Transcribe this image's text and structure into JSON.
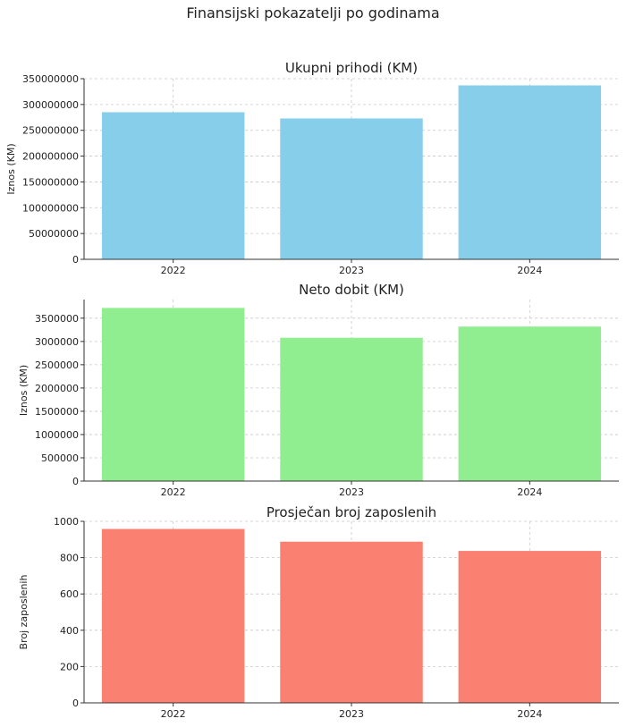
{
  "figure": {
    "suptitle": "Finansijski pokazatelji po godinama"
  },
  "chart_data": [
    {
      "type": "bar",
      "title": "Ukupni prihodi (KM)",
      "xlabel": "",
      "ylabel": "Iznos (KM)",
      "categories": [
        "2022",
        "2023",
        "2024"
      ],
      "values": [
        285000000,
        273000000,
        337000000
      ],
      "ylim": [
        0,
        350000000
      ],
      "yticks": [
        0,
        50000000,
        100000000,
        150000000,
        200000000,
        250000000,
        300000000,
        350000000
      ],
      "ytick_labels": [
        "0",
        "50000000",
        "100000000",
        "150000000",
        "200000000",
        "250000000",
        "300000000",
        "350000000"
      ],
      "color": "#87ceeb",
      "grid": true
    },
    {
      "type": "bar",
      "title": "Neto dobit (KM)",
      "xlabel": "",
      "ylabel": "Iznos (KM)",
      "categories": [
        "2022",
        "2023",
        "2024"
      ],
      "values": [
        3720000,
        3080000,
        3320000
      ],
      "ylim": [
        0,
        3900000
      ],
      "yticks": [
        0,
        500000,
        1000000,
        1500000,
        2000000,
        2500000,
        3000000,
        3500000
      ],
      "ytick_labels": [
        "0",
        "500000",
        "1000000",
        "1500000",
        "2000000",
        "2500000",
        "3000000",
        "3500000"
      ],
      "color": "#90ee90",
      "grid": true
    },
    {
      "type": "bar",
      "title": "Prosječan broj zaposlenih",
      "xlabel": "",
      "ylabel": "Broj zaposlenih",
      "categories": [
        "2022",
        "2023",
        "2024"
      ],
      "values": [
        958,
        888,
        837
      ],
      "ylim": [
        0,
        1000
      ],
      "yticks": [
        0,
        200,
        400,
        600,
        800,
        1000
      ],
      "ytick_labels": [
        "0",
        "200",
        "400",
        "600",
        "800",
        "1000"
      ],
      "color": "#fa8072",
      "grid": true
    }
  ]
}
